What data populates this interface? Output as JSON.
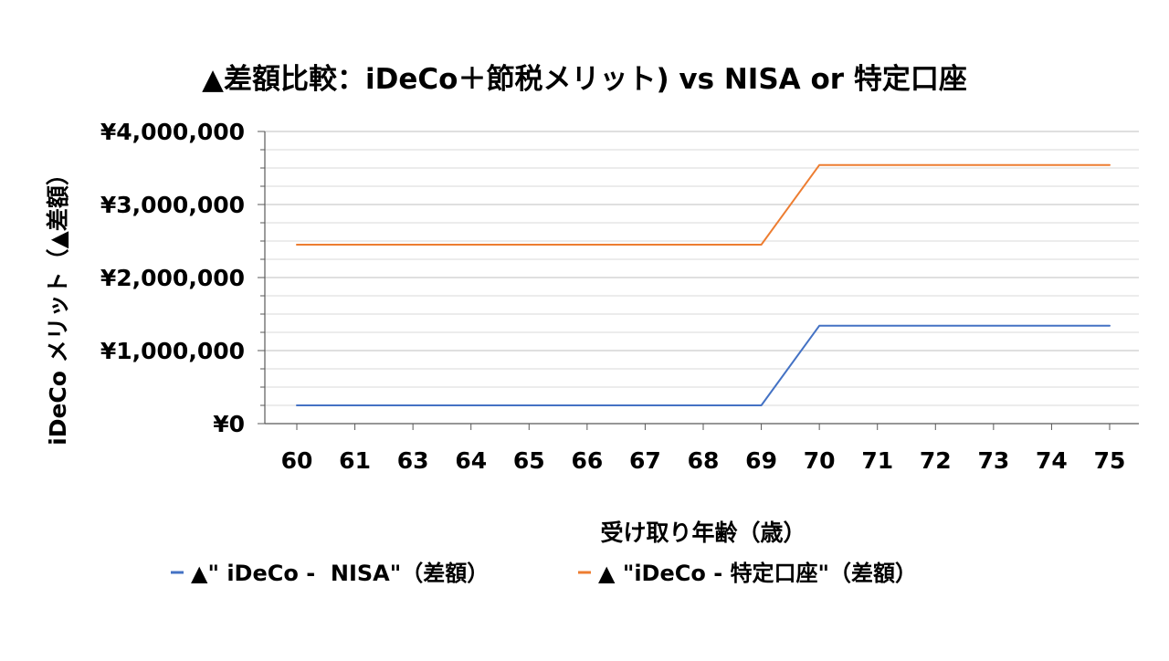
{
  "chart_data": {
    "type": "line",
    "title": "▲差額比較：iDeCo＋節税メリット) vs NISA or 特定口座",
    "xlabel": "受け取り年齢（歳）",
    "ylabel": "iDeCo メリット（▲差額）",
    "categories": [
      "60",
      "61",
      "63",
      "64",
      "65",
      "66",
      "67",
      "68",
      "69",
      "70",
      "71",
      "72",
      "73",
      "74",
      "75"
    ],
    "y_ticks": [
      "¥0",
      "¥1,000,000",
      "¥2,000,000",
      "¥3,000,000",
      "¥4,000,000"
    ],
    "ylim": [
      0,
      4000000
    ],
    "grid": true,
    "legend_position": "bottom",
    "series": [
      {
        "name": "▲\" iDeCo -  NISA\"（差額）",
        "color": "#4472C4",
        "values": [
          250000,
          250000,
          250000,
          250000,
          250000,
          250000,
          250000,
          250000,
          250000,
          1340000,
          1340000,
          1340000,
          1340000,
          1340000,
          1340000
        ]
      },
      {
        "name": "▲ \"iDeCo - 特定口座\"（差額）",
        "color": "#ED7D31",
        "values": [
          2450000,
          2450000,
          2450000,
          2450000,
          2450000,
          2450000,
          2450000,
          2450000,
          2450000,
          3540000,
          3540000,
          3540000,
          3540000,
          3540000,
          3540000
        ]
      }
    ]
  }
}
